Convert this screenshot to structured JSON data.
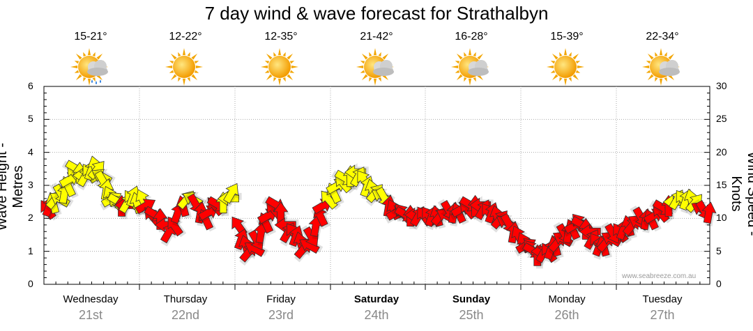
{
  "chart_data": {
    "type": "line",
    "title": "7 day wind & wave forecast for Strathalbyn",
    "ylabel_left": "Wave Height - Metres",
    "ylabel_right": "Wind Speed - Knots",
    "ylim_left": [
      0,
      6
    ],
    "ylim_right": [
      0,
      30
    ],
    "yticks_left": [
      "0",
      "1",
      "2",
      "3",
      "4",
      "5",
      "6"
    ],
    "yticks_right": [
      "0",
      "5",
      "10",
      "15",
      "20",
      "25",
      "30"
    ],
    "grid": true,
    "days": [
      {
        "name": "Wednesday",
        "date": "21st",
        "temp": "15-21°",
        "icon": "sun-cloud-rain-icon",
        "bold": false
      },
      {
        "name": "Thursday",
        "date": "22nd",
        "temp": "12-22°",
        "icon": "sun-icon",
        "bold": false
      },
      {
        "name": "Friday",
        "date": "23rd",
        "temp": "12-35°",
        "icon": "sun-icon",
        "bold": false
      },
      {
        "name": "Saturday",
        "date": "24th",
        "temp": "21-42°",
        "icon": "sun-cloud-icon",
        "bold": true
      },
      {
        "name": "Sunday",
        "date": "25th",
        "temp": "16-28°",
        "icon": "sun-cloud-icon",
        "bold": true
      },
      {
        "name": "Monday",
        "date": "26th",
        "temp": "15-39°",
        "icon": "sun-icon",
        "bold": false
      },
      {
        "name": "Tuesday",
        "date": "27th",
        "temp": "22-34°",
        "icon": "sun-cloud-icon",
        "bold": false
      }
    ],
    "series": [
      {
        "unit": "knots",
        "colors_by_strength": {
          "strong": "#ffff00",
          "light": "#ff0000"
        },
        "values": [
          [
            11.5,
            12,
            12.5,
            13,
            13,
            13.5,
            14,
            15,
            16,
            17,
            17.5,
            17,
            16.5,
            16.5,
            17,
            17.5,
            18,
            17.5,
            16.5,
            15.5,
            14.5,
            13.5,
            13,
            12.5,
            12.5,
            12,
            12,
            12.5,
            13,
            13.5,
            12.5
          ],
          [
            13,
            12,
            10.5,
            10.5,
            10,
            9,
            8,
            9,
            11,
            12,
            13,
            13,
            12,
            11,
            10,
            11,
            12,
            12,
            12.5,
            13,
            14
          ],
          [
            9,
            7,
            6,
            5,
            5.5,
            6.5,
            8,
            9.5,
            10.5,
            11.5,
            12,
            11,
            9,
            8,
            8,
            7.5,
            6.5,
            5.5,
            6,
            7,
            9,
            10.5,
            12,
            13
          ],
          [
            14,
            15,
            15.5,
            16,
            16.5,
            17,
            16.5,
            16,
            15,
            14.5,
            14,
            13.5,
            13,
            12,
            11.5,
            11,
            11,
            10.5,
            10.5,
            10.5,
            10.5,
            10.5
          ],
          [
            10.5,
            10.5,
            10.5,
            10.5,
            10.5,
            11,
            11,
            11,
            11.5,
            11.5,
            12,
            12,
            12,
            11.5,
            11,
            11,
            10.5,
            10,
            9.5,
            9,
            8,
            7.5
          ],
          [
            6.5,
            6,
            5.5,
            5,
            4.5,
            5,
            5,
            5,
            5.5,
            6,
            6.5,
            7,
            7.5,
            8,
            8.5,
            9,
            9.5,
            9,
            8.5,
            8,
            7,
            6.5,
            6,
            6,
            6.5,
            7,
            7.5
          ],
          [
            8,
            8.5,
            9,
            9,
            9.5,
            10,
            10,
            10,
            10.5,
            11,
            11.5,
            12,
            12.5,
            13,
            13,
            13,
            13,
            12.5,
            11.5,
            11,
            11
          ]
        ]
      }
    ]
  }
}
